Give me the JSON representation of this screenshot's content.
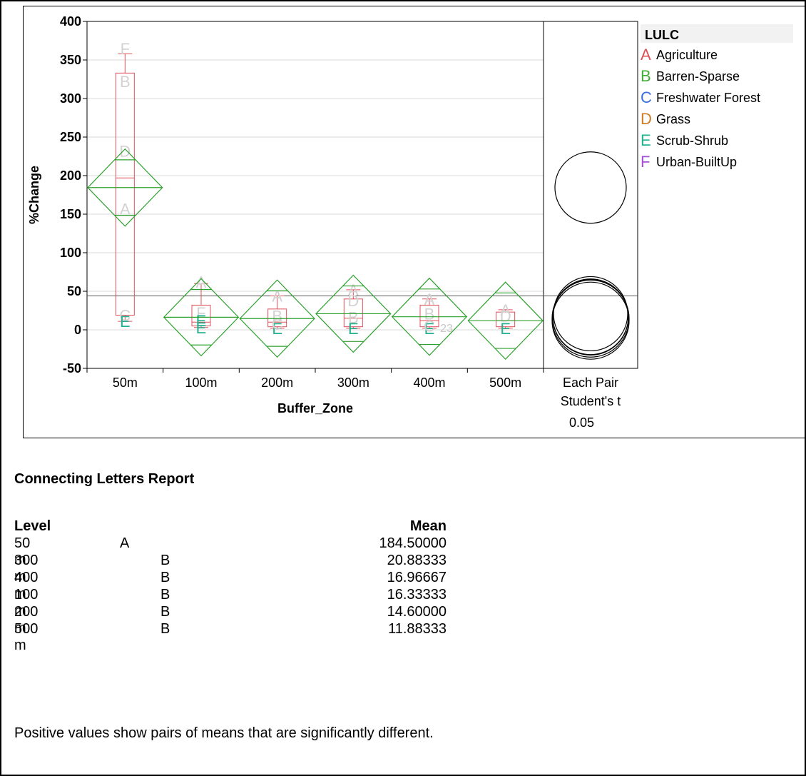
{
  "chart_data": {
    "type": "box",
    "ylabel": "%Change",
    "xlabel": "Buffer_Zone",
    "ylim": [
      -50,
      400
    ],
    "yticks": [
      -50,
      0,
      50,
      100,
      150,
      200,
      250,
      300,
      350,
      400
    ],
    "categories": [
      "50m",
      "100m",
      "200m",
      "300m",
      "400m",
      "500m"
    ],
    "grand_mean": 44,
    "means": [
      184.5,
      16.33,
      14.6,
      20.88,
      16.97,
      11.88
    ],
    "ci_halfwidth": [
      36,
      36,
      36,
      36,
      36,
      36
    ],
    "diamond_halfheight": [
      50,
      50,
      50,
      50,
      50,
      50
    ],
    "boxes": [
      {
        "min": 11,
        "q1": 19,
        "median": 197,
        "q3": 333,
        "max": 358
      },
      {
        "min": 3,
        "q1": 5,
        "median": 10,
        "q3": 32,
        "max": 60
      },
      {
        "min": 2,
        "q1": 4,
        "median": 10,
        "q3": 27,
        "max": 44
      },
      {
        "min": 2,
        "q1": 4,
        "median": 15,
        "q3": 40,
        "max": 52
      },
      {
        "min": 2,
        "q1": 4,
        "median": 12,
        "q3": 32,
        "max": 40
      },
      {
        "min": 2,
        "q1": 4,
        "median": 12,
        "q3": 23,
        "max": 26
      }
    ],
    "points": [
      {
        "cat": 0,
        "y": 365,
        "letter": "F"
      },
      {
        "cat": 0,
        "y": 322,
        "letter": "B"
      },
      {
        "cat": 0,
        "y": 232,
        "letter": "D"
      },
      {
        "cat": 0,
        "y": 157,
        "letter": "A"
      },
      {
        "cat": 0,
        "y": 19,
        "letter": "C"
      },
      {
        "cat": 0,
        "y": 11,
        "letter": "E"
      },
      {
        "cat": 1,
        "y": 62,
        "letter": "A"
      },
      {
        "cat": 1,
        "y": 22,
        "letter": "F"
      },
      {
        "cat": 1,
        "y": 3,
        "letter": "E"
      },
      {
        "cat": 1,
        "y": 12,
        "letter": "E"
      },
      {
        "cat": 2,
        "y": 44,
        "letter": "A"
      },
      {
        "cat": 2,
        "y": 18,
        "letter": "B"
      },
      {
        "cat": 2,
        "y": 2,
        "letter": "E"
      },
      {
        "cat": 2,
        "y": 8,
        "letter": "C"
      },
      {
        "cat": 3,
        "y": 52,
        "letter": "A"
      },
      {
        "cat": 3,
        "y": 16,
        "letter": "B"
      },
      {
        "cat": 3,
        "y": 2,
        "letter": "E"
      },
      {
        "cat": 3,
        "y": 38,
        "letter": "D"
      },
      {
        "cat": 4,
        "y": 40,
        "letter": "A"
      },
      {
        "cat": 4,
        "y": 21,
        "letter": "B"
      },
      {
        "cat": 4,
        "y": 2,
        "letter": "E"
      },
      {
        "cat": 4,
        "y": 5,
        "letter": "C"
      },
      {
        "cat": 5,
        "y": 26,
        "letter": "A"
      },
      {
        "cat": 5,
        "y": 18,
        "letter": "D"
      },
      {
        "cat": 5,
        "y": 2,
        "letter": "E"
      }
    ],
    "extra_label": "23",
    "comparison_panel": {
      "line1": "Each Pair",
      "line2": "Student's t",
      "line3": "0.05"
    },
    "legend": {
      "title": "LULC",
      "entries": [
        {
          "letter": "A",
          "label": "Agriculture",
          "color": "#e0505a"
        },
        {
          "letter": "B",
          "label": "Barren-Sparse",
          "color": "#3fae3a"
        },
        {
          "letter": "C",
          "label": "Freshwater Forest",
          "color": "#3a6fe0"
        },
        {
          "letter": "D",
          "label": "Grass",
          "color": "#d07a22"
        },
        {
          "letter": "E",
          "label": "Scrub-Shrub",
          "color": "#25b08f"
        },
        {
          "letter": "F",
          "label": "Urban-BuiltUp",
          "color": "#a24fd6"
        }
      ]
    }
  },
  "report": {
    "title": "Connecting Letters Report",
    "header_level": "Level",
    "header_mean": "Mean",
    "rows": [
      {
        "level": "50 m",
        "letter": "A",
        "mean": "184.50000"
      },
      {
        "level": "300 m",
        "letter": "B",
        "mean": "20.88333"
      },
      {
        "level": "400 m",
        "letter": "B",
        "mean": "16.96667"
      },
      {
        "level": "100 m",
        "letter": "B",
        "mean": "16.33333"
      },
      {
        "level": "200 m",
        "letter": "B",
        "mean": "14.60000"
      },
      {
        "level": "500 m",
        "letter": "B",
        "mean": "11.88333"
      }
    ],
    "note": "Positive values show pairs of means that are significantly different."
  }
}
